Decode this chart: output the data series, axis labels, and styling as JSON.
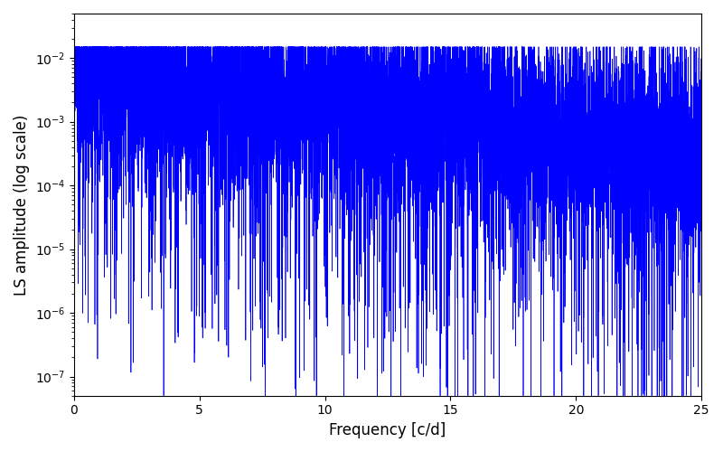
{
  "title": "",
  "xlabel": "Frequency [c/d]",
  "ylabel": "LS amplitude (log scale)",
  "xlim": [
    0,
    25
  ],
  "ylim": [
    5e-08,
    0.05
  ],
  "yscale": "log",
  "line_color": "#0000ff",
  "line_width": 0.5,
  "freq_max": 25.0,
  "n_points": 10000,
  "seed": 42,
  "background_color": "#ffffff",
  "figsize": [
    8.0,
    5.0
  ],
  "dpi": 100
}
